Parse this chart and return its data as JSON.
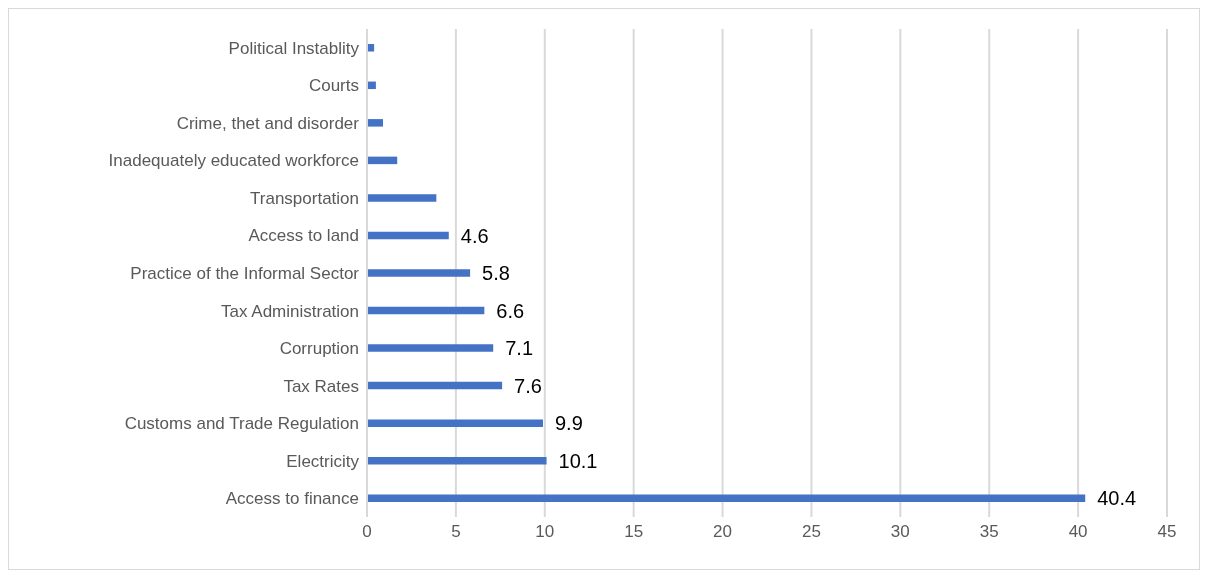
{
  "chart_data": {
    "type": "bar",
    "orientation": "horizontal",
    "categories": [
      "Political Instablity",
      "Courts",
      "Crime, thet and disorder",
      "Inadequately educated workforce",
      "Transportation",
      "Access to land",
      "Practice of the Informal Sector",
      "Tax Administration",
      "Corruption",
      "Tax Rates",
      "Customs and Trade Regulation",
      "Electricity",
      "Access to finance"
    ],
    "values": [
      0.4,
      0.5,
      0.9,
      1.7,
      3.9,
      4.6,
      5.8,
      6.6,
      7.1,
      7.6,
      9.9,
      10.1,
      40.4
    ],
    "value_labels": [
      null,
      null,
      null,
      null,
      null,
      "4.6",
      "5.8",
      "6.6",
      "7.1",
      "7.6",
      "9.9",
      "10.1",
      "40.4"
    ],
    "color": "#4472c4",
    "xlim": [
      0,
      45
    ],
    "xticks": [
      0,
      5,
      10,
      15,
      20,
      25,
      30,
      35,
      40,
      45
    ],
    "grid": "x"
  }
}
